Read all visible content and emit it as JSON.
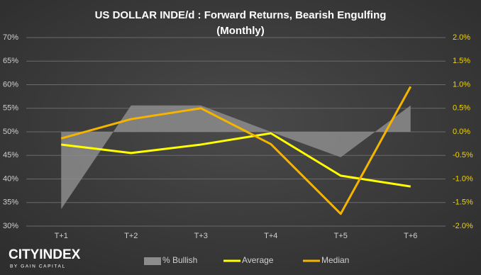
{
  "chart_data": {
    "type": "combo",
    "title": "US DOLLAR INDE/d : Forward Returns, Bearish Engulfing",
    "subtitle": "(Monthly)",
    "categories": [
      "T+1",
      "T+2",
      "T+3",
      "T+4",
      "T+5",
      "T+6"
    ],
    "series": [
      {
        "name": "% Bullish",
        "type": "area",
        "color": "#8c8c8c",
        "values": [
          33.6,
          55.6,
          55.6,
          50,
          44.6,
          55.6
        ]
      },
      {
        "name": "Average",
        "type": "line",
        "axis": "y2",
        "color": "#ffff00",
        "values": [
          -0.27,
          -0.45,
          -0.27,
          -0.03,
          -0.93,
          -1.16
        ]
      },
      {
        "name": "Median",
        "type": "line",
        "axis": "y2",
        "color": "#f5b400",
        "values": [
          -0.14,
          0.27,
          0.5,
          -0.26,
          -1.74,
          0.96
        ]
      }
    ],
    "ylim": [
      30,
      70
    ],
    "yticks": [
      {
        "value": 30,
        "label": "30%"
      },
      {
        "value": 35,
        "label": "35%"
      },
      {
        "value": 40,
        "label": "40%"
      },
      {
        "value": 45,
        "label": "45%"
      },
      {
        "value": 50,
        "label": "50%"
      },
      {
        "value": 55,
        "label": "55%"
      },
      {
        "value": 60,
        "label": "60%"
      },
      {
        "value": 65,
        "label": "65%"
      },
      {
        "value": 70,
        "label": "70%"
      }
    ],
    "y2lim": [
      -2,
      2
    ],
    "y2ticks": [
      {
        "value": -2,
        "label": "-2.0%"
      },
      {
        "value": -1.5,
        "label": "-1.5%"
      },
      {
        "value": -1,
        "label": "-1.0%"
      },
      {
        "value": -0.5,
        "label": "-0.5%"
      },
      {
        "value": 0,
        "label": "0.0%"
      },
      {
        "value": 0.5,
        "label": "0.5%"
      },
      {
        "value": 1,
        "label": "1.0%"
      },
      {
        "value": 1.5,
        "label": "1.5%"
      },
      {
        "value": 2,
        "label": "2.0%"
      }
    ],
    "y2_label_color": "#f2d600",
    "grid": true,
    "legend": "bottom"
  },
  "logo": {
    "name": "CITYINDEX",
    "tagline": "BY GAIN CAPITAL"
  }
}
